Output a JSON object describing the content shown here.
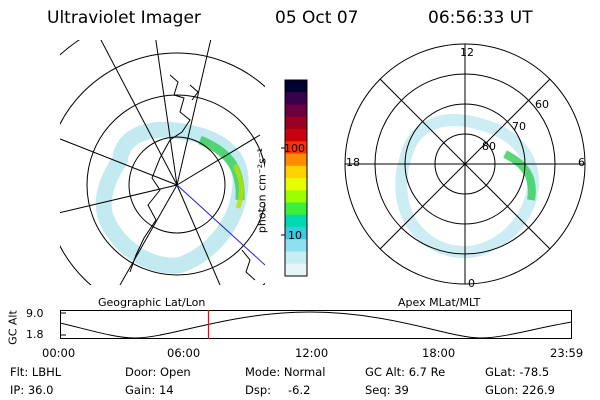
{
  "header": {
    "instrument": "Ultraviolet Imager",
    "date": "05 Oct 07",
    "time": "06:56:33 UT"
  },
  "colorbar": {
    "unit_label": "photon cm⁻²s⁻¹",
    "ticks": [
      "100",
      "10"
    ],
    "colors": [
      "#000033",
      "#3a004a",
      "#6a0040",
      "#9a0020",
      "#c80010",
      "#ff3000",
      "#ff8c00",
      "#ffd200",
      "#e6ff00",
      "#9cff00",
      "#3cef3c",
      "#00d8b0",
      "#40c8e0",
      "#8ee0ee",
      "#c8eef4",
      "#e6f6f8"
    ]
  },
  "polar_plot": {
    "hour_labels": {
      "top": "12",
      "left": "18",
      "right": "6",
      "bottom": "0"
    },
    "lat_labels": [
      "60",
      "70",
      "80"
    ]
  },
  "panel_labels": {
    "left": "Geographic Lat/Lon",
    "right": "Apex MLat/MLT"
  },
  "timeline": {
    "axis_label": "GC Alt",
    "y_ticks": [
      "9.0",
      "1.8"
    ],
    "x_ticks": [
      "00:00",
      "06:00",
      "12:00",
      "18:00",
      "23:59"
    ],
    "current_time_fraction": 0.29,
    "marker_color": "#ff0000"
  },
  "status": {
    "flt": "Flt: LBHL",
    "ip": "IP: 36.0",
    "door": "Door: Open",
    "gain": "Gain: 14",
    "mode": "Mode: Normal",
    "dsp_label": "Dsp:",
    "dsp_value": "-6.2",
    "gc_alt": "GC Alt: 6.7 Re",
    "seq": "Seq: 39",
    "glat": "GLat: -78.5",
    "glon": "GLon: 226.9"
  }
}
